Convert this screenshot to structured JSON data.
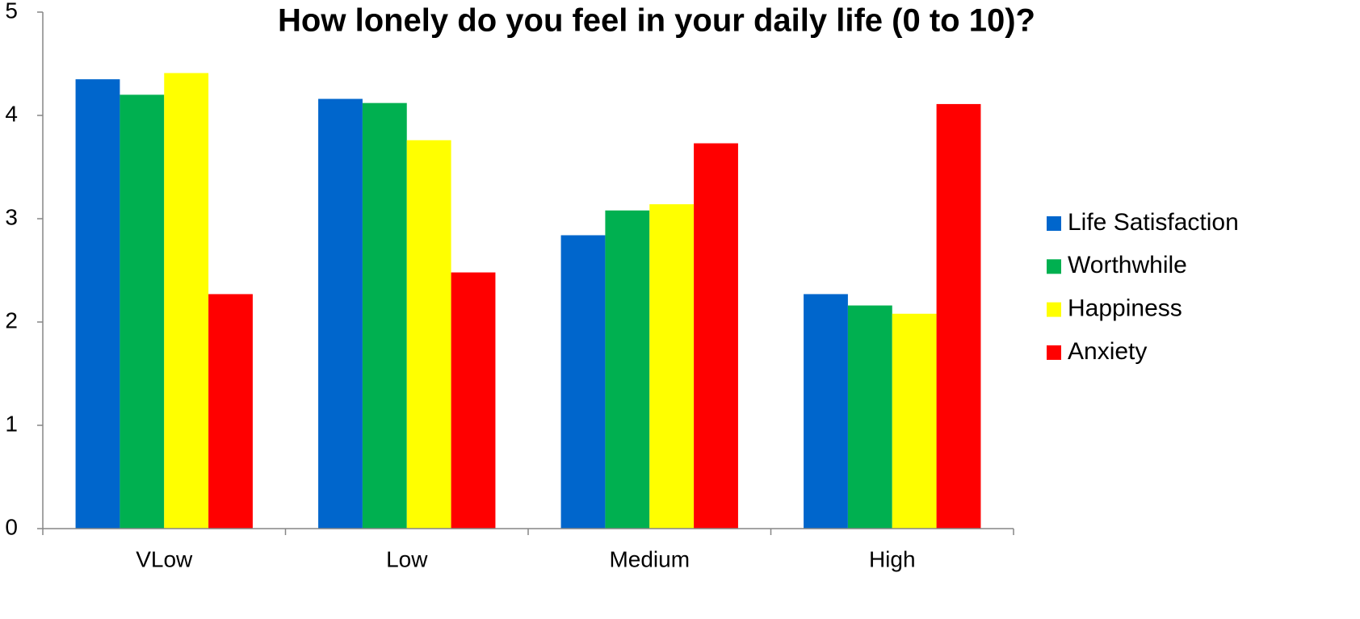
{
  "chart_data": {
    "type": "bar",
    "title": "How lonely do you feel in your daily life (0 to 10)?",
    "categories": [
      "VLow",
      "Low",
      "Medium",
      "High"
    ],
    "series": [
      {
        "name": "Life Satisfaction",
        "color": "#0066cc",
        "values": [
          4.35,
          4.16,
          2.84,
          2.27
        ]
      },
      {
        "name": "Worthwhile",
        "color": "#00b050",
        "values": [
          4.2,
          4.12,
          3.08,
          2.16
        ]
      },
      {
        "name": "Happiness",
        "color": "#ffff00",
        "values": [
          4.41,
          3.76,
          3.14,
          2.08
        ]
      },
      {
        "name": "Anxiety",
        "color": "#ff0000",
        "values": [
          2.27,
          2.48,
          3.73,
          4.11
        ]
      }
    ],
    "ylim": [
      0,
      5
    ],
    "yticks": [
      0,
      1,
      2,
      3,
      4,
      5
    ],
    "grid": false,
    "legend": "right"
  }
}
